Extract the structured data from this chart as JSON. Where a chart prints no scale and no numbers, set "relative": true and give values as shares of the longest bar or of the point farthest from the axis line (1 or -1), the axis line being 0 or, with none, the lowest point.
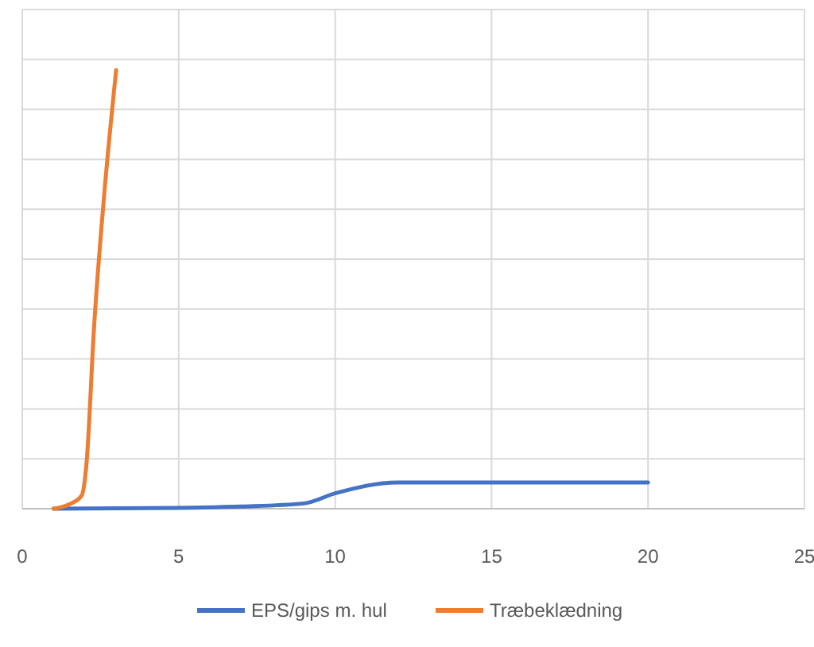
{
  "chart_data": {
    "type": "line",
    "relative": true,
    "xlim": [
      0,
      25
    ],
    "xticks": [
      0,
      5,
      10,
      15,
      20,
      25
    ],
    "grid": true,
    "legend": "bottom",
    "series": [
      {
        "name": "EPS/gips m. hul",
        "color": "#4472c4",
        "x": [
          1,
          5,
          7,
          9,
          10,
          12,
          20
        ],
        "values": [
          0,
          0.002,
          0.005,
          0.012,
          0.035,
          0.06,
          0.06
        ]
      },
      {
        "name": "Træbeklædning",
        "color": "#ed7d31",
        "x": [
          1,
          1.5,
          1.9,
          2.05,
          2.3,
          2.6,
          3
        ],
        "values": [
          0,
          0.01,
          0.03,
          0.1,
          0.42,
          0.7,
          1
        ]
      }
    ]
  }
}
